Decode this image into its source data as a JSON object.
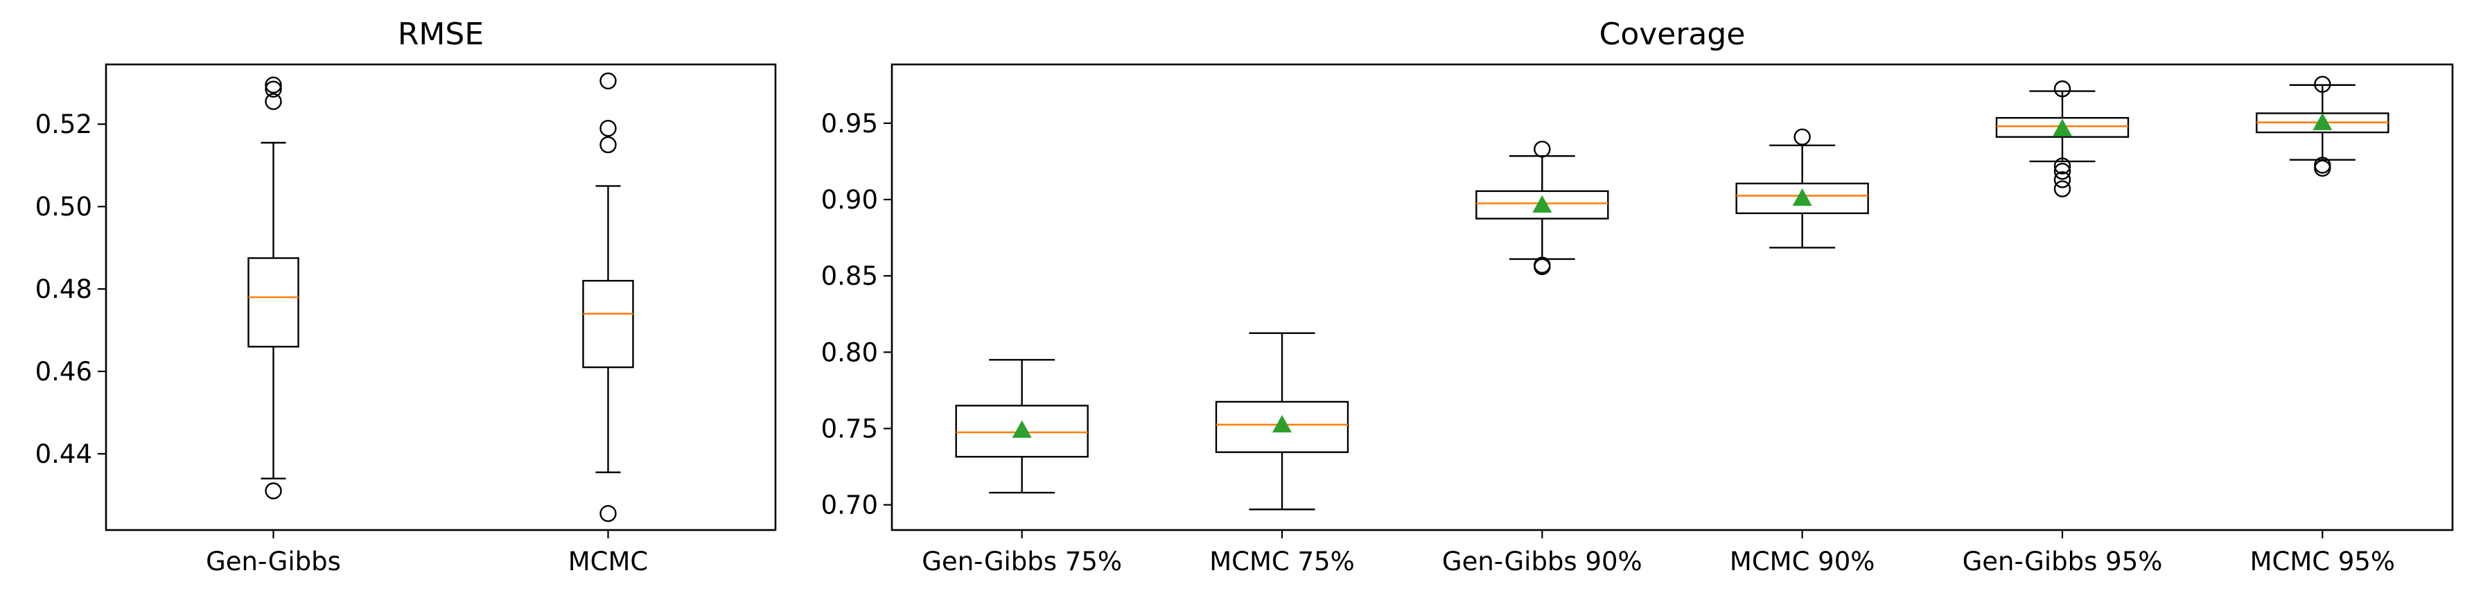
{
  "colors": {
    "median": "#ff7f0e",
    "mean": "#2ca02c",
    "box": "#000000"
  },
  "chart_data": [
    {
      "type": "boxplot",
      "title": "RMSE",
      "ylim": [
        0.4215,
        0.5345
      ],
      "yticks": [
        {
          "v": 0.44,
          "label": "0.44"
        },
        {
          "v": 0.46,
          "label": "0.46"
        },
        {
          "v": 0.48,
          "label": "0.48"
        },
        {
          "v": 0.5,
          "label": "0.50"
        },
        {
          "v": 0.52,
          "label": "0.52"
        }
      ],
      "show_mean": false,
      "groups": [
        {
          "label": "Gen-Gibbs",
          "whislo": 0.434,
          "q1": 0.466,
          "median": 0.478,
          "q3": 0.4875,
          "whishi": 0.5155,
          "fliers": [
            0.431,
            0.5255,
            0.5285,
            0.5295
          ]
        },
        {
          "label": "MCMC",
          "whislo": 0.4355,
          "q1": 0.461,
          "median": 0.474,
          "q3": 0.482,
          "whishi": 0.505,
          "fliers": [
            0.4255,
            0.515,
            0.519,
            0.5305
          ]
        }
      ]
    },
    {
      "type": "boxplot",
      "title": "Coverage",
      "ylim": [
        0.6835,
        0.9885
      ],
      "yticks": [
        {
          "v": 0.7,
          "label": "0.70"
        },
        {
          "v": 0.75,
          "label": "0.75"
        },
        {
          "v": 0.8,
          "label": "0.80"
        },
        {
          "v": 0.85,
          "label": "0.85"
        },
        {
          "v": 0.9,
          "label": "0.90"
        },
        {
          "v": 0.95,
          "label": "0.95"
        }
      ],
      "show_mean": true,
      "groups": [
        {
          "label": "Gen-Gibbs 75%",
          "whislo": 0.708,
          "q1": 0.7315,
          "median": 0.7475,
          "q3": 0.765,
          "whishi": 0.795,
          "mean": 0.749,
          "fliers": []
        },
        {
          "label": "MCMC 75%",
          "whislo": 0.697,
          "q1": 0.7345,
          "median": 0.7525,
          "q3": 0.7675,
          "whishi": 0.8125,
          "mean": 0.7525,
          "fliers": []
        },
        {
          "label": "Gen-Gibbs 90%",
          "whislo": 0.861,
          "q1": 0.8875,
          "median": 0.8975,
          "q3": 0.9055,
          "whishi": 0.9285,
          "mean": 0.8965,
          "fliers": [
            0.856,
            0.857,
            0.933
          ]
        },
        {
          "label": "MCMC 90%",
          "whislo": 0.8685,
          "q1": 0.891,
          "median": 0.9025,
          "q3": 0.9105,
          "whishi": 0.9355,
          "mean": 0.901,
          "fliers": [
            0.941
          ]
        },
        {
          "label": "Gen-Gibbs 95%",
          "whislo": 0.925,
          "q1": 0.941,
          "median": 0.948,
          "q3": 0.9535,
          "whishi": 0.971,
          "mean": 0.9465,
          "fliers": [
            0.907,
            0.913,
            0.9185,
            0.922,
            0.9725
          ]
        },
        {
          "label": "MCMC 95%",
          "whislo": 0.926,
          "q1": 0.944,
          "median": 0.9505,
          "q3": 0.9565,
          "whishi": 0.975,
          "mean": 0.9505,
          "fliers": [
            0.9205,
            0.9225,
            0.9755
          ]
        }
      ]
    }
  ]
}
